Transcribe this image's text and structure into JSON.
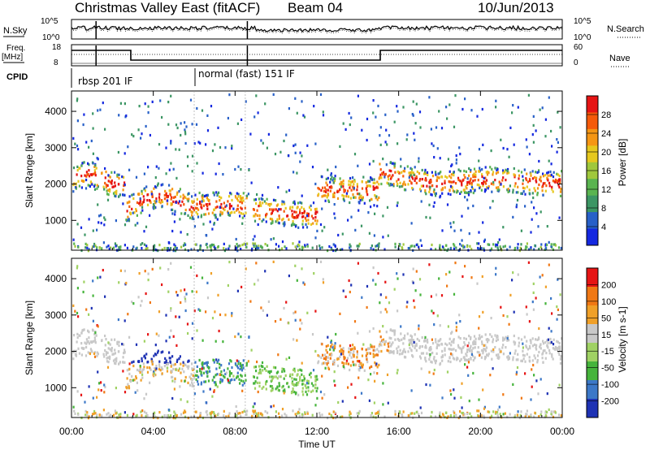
{
  "header": {
    "title": "Christmas Valley East (fitACF)",
    "beam": "Beam 04",
    "date": "10/Jun/2013"
  },
  "strips": {
    "nsky_label": "N.Sky",
    "nsky_ticks": [
      "10^5",
      "10^0"
    ],
    "nsearch_label": "N.Search",
    "nsearch_ticks": [
      "10^5",
      "10^0"
    ],
    "freq_label": "Freq.",
    "freq_unit": "[MHz]",
    "freq_ticks": [
      "18",
      "8"
    ],
    "nave_label": "Nave",
    "nave_ticks": [
      "60",
      "0"
    ],
    "cpid_label": "CPID",
    "cpid_entries": [
      {
        "label": "rbsp 201 IF",
        "start_hour": 0.0
      },
      {
        "label": "normal (fast) 151 IF",
        "start_hour": 6.0
      }
    ]
  },
  "chart_data": [
    {
      "type": "heatmap",
      "panel": "power",
      "xlabel": "Time UT",
      "ylabel": "Slant Range [km]",
      "x_ticks": [
        "00:00",
        "04:00",
        "08:00",
        "12:00",
        "16:00",
        "20:00",
        "00:00"
      ],
      "x_range_hours": [
        0,
        24
      ],
      "y_ticks": [
        1000,
        2000,
        3000,
        4000
      ],
      "ylim": [
        180,
        4560
      ],
      "colorbar_label": "Power [dB]",
      "colorbar_ticks": [
        "28",
        "24",
        "20",
        "16",
        "12",
        "8",
        "4"
      ],
      "colorbar_range": [
        0,
        30
      ],
      "colors": [
        "#1428e0",
        "#2860c8",
        "#3c9664",
        "#5ab450",
        "#a0c83c",
        "#e6c81e",
        "#f59614",
        "#f55a0a",
        "#e61414"
      ]
    },
    {
      "type": "heatmap",
      "panel": "velocity",
      "xlabel": "Time UT",
      "ylabel": "Slant Range [km]",
      "x_ticks": [
        "00:00",
        "04:00",
        "08:00",
        "12:00",
        "16:00",
        "20:00",
        "00:00"
      ],
      "x_range_hours": [
        0,
        24
      ],
      "y_ticks": [
        1000,
        2000,
        3000,
        4000
      ],
      "ylim": [
        180,
        4560
      ],
      "colorbar_label": "Velocity [m s-1]",
      "colorbar_ticks": [
        "200",
        "100",
        "50",
        "15",
        "-15",
        "-50",
        "-100",
        "-200"
      ],
      "colors": [
        "#1e32b4",
        "#3c78c8",
        "#46b43c",
        "#a0d264",
        "#c8c8c8",
        "#f0a028",
        "#f07814",
        "#e61414"
      ]
    }
  ]
}
